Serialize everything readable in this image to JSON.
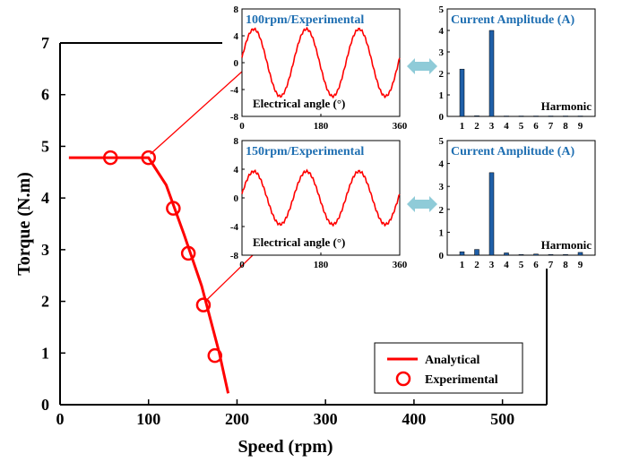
{
  "chart_data": [
    {
      "type": "line",
      "xlabel": "Speed (rpm)",
      "ylabel": "Torque (N.m)",
      "xlim": [
        0,
        550
      ],
      "ylim": [
        0,
        7
      ],
      "xticks": [
        "0",
        "100",
        "200",
        "300",
        "400",
        "500"
      ],
      "yticks": [
        "0",
        "1",
        "2",
        "3",
        "4",
        "5",
        "6",
        "7"
      ],
      "series": [
        {
          "name": "Analytical",
          "style": "line",
          "color": "#ff0000",
          "x": [
            10,
            100,
            120,
            140,
            160,
            180,
            190
          ],
          "y": [
            4.78,
            4.78,
            4.25,
            3.3,
            2.3,
            1.0,
            0.22
          ]
        },
        {
          "name": "Experimental",
          "style": "markers",
          "color": "#ff0000",
          "x": [
            57,
            100,
            128,
            145,
            162,
            175
          ],
          "y": [
            4.78,
            4.78,
            3.8,
            2.93,
            1.93,
            0.95
          ]
        }
      ],
      "legend": "bottom-right",
      "grid": false
    },
    {
      "type": "line",
      "title": "100rpm/Experimental",
      "xlabel": "Electrical angle (°)",
      "xlim": [
        0,
        360
      ],
      "ylim": [
        -8,
        8
      ],
      "xticks": [
        "0",
        "180",
        "360"
      ],
      "yticks": [
        "8",
        "4",
        "0",
        "-4",
        "-8"
      ],
      "amplitude": 5,
      "cycles": 3
    },
    {
      "type": "bar",
      "title": "Current Amplitude (A)",
      "xlabel": "Harmonic",
      "categories": [
        "1",
        "2",
        "3",
        "4",
        "5",
        "6",
        "7",
        "8",
        "9"
      ],
      "values": [
        2.2,
        0.03,
        4.0,
        0.02,
        0.02,
        0.02,
        0.02,
        0.02,
        0.02
      ],
      "ylim": [
        0,
        5
      ],
      "yticks": [
        "5",
        "4",
        "3",
        "2",
        "1",
        "0"
      ]
    },
    {
      "type": "line",
      "title": "150rpm/Experimental",
      "xlabel": "Electrical angle (°)",
      "xlim": [
        0,
        360
      ],
      "ylim": [
        -8,
        8
      ],
      "xticks": [
        "0",
        "180",
        "360"
      ],
      "yticks": [
        "8",
        "4",
        "0",
        "-4",
        "-8"
      ],
      "amplitude": 3.7,
      "cycles": 3
    },
    {
      "type": "bar",
      "title": "Current Amplitude (A)",
      "xlabel": "Harmonic",
      "categories": [
        "1",
        "2",
        "3",
        "4",
        "5",
        "6",
        "7",
        "8",
        "9"
      ],
      "values": [
        0.15,
        0.25,
        3.6,
        0.1,
        0.03,
        0.05,
        0.03,
        0.03,
        0.12
      ],
      "ylim": [
        0,
        5
      ],
      "yticks": [
        "5",
        "4",
        "3",
        "2",
        "1",
        "0"
      ]
    }
  ],
  "colors": {
    "line": "#ff0000",
    "inset_title": "#1f6fb2",
    "bar": "#1f5fa8",
    "arrow": "#8fcbd8"
  }
}
